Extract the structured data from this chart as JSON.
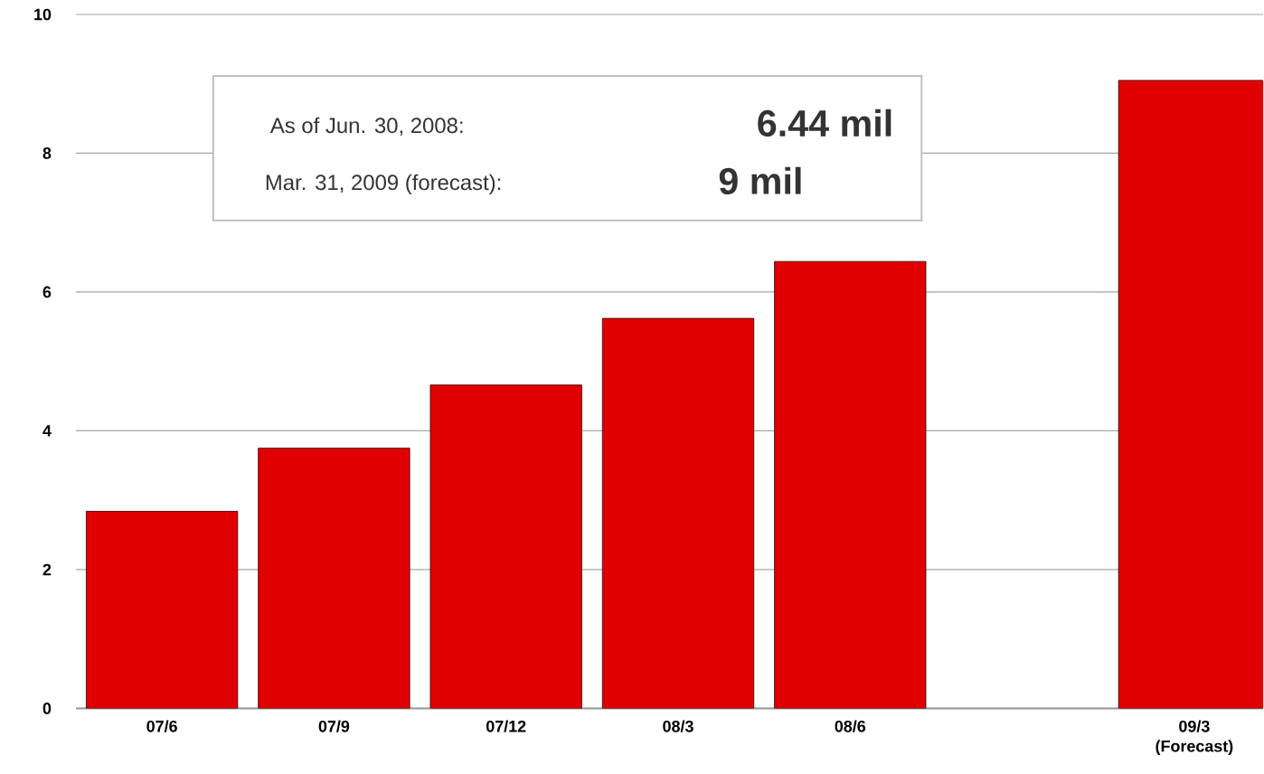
{
  "chart_data": {
    "type": "bar",
    "categories": [
      "07/6",
      "07/9",
      "07/12",
      "08/3",
      "08/6",
      null,
      "09/3 (Forecast)"
    ],
    "values": [
      2.84,
      3.75,
      4.66,
      5.62,
      6.44,
      null,
      9.05
    ],
    "color": "#e00000",
    "ylim": [
      0,
      10
    ],
    "yticks": [
      0,
      2,
      4,
      6,
      8,
      10
    ],
    "grid": "y",
    "annotations": [
      "As of Jun. 30, 2008:",
      "6.44 mil",
      "Mar. 31, 2009 (forecast):",
      "9 mil"
    ]
  }
}
